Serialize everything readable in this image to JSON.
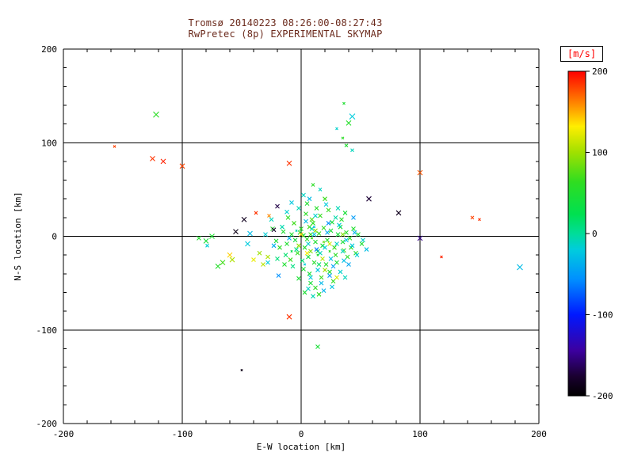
{
  "title": {
    "line1": "Tromsø 20140223 08:26:00-08:27:43",
    "line2": "RwPretec (8p) EXPERIMENTAL SKYMAP"
  },
  "axes": {
    "xlabel": "E-W location [km]",
    "ylabel": "N-S location [km]",
    "xlim": [
      -200,
      200
    ],
    "ylim": [
      -200,
      200
    ],
    "xticks": [
      -200,
      -100,
      0,
      100,
      200
    ],
    "yticks": [
      -200,
      -100,
      0,
      100,
      200
    ],
    "minor_tick_step": 20,
    "grid": true
  },
  "colorbar": {
    "label": "[m/s]",
    "min": -200,
    "max": 200,
    "ticks": [
      200,
      100,
      0,
      -100,
      -200
    ],
    "stops": [
      [
        0.0,
        "#000000"
      ],
      [
        0.06,
        "#1a0030"
      ],
      [
        0.14,
        "#3c00a0"
      ],
      [
        0.25,
        "#0018ff"
      ],
      [
        0.36,
        "#0090ff"
      ],
      [
        0.45,
        "#00ccdd"
      ],
      [
        0.5,
        "#00dd99"
      ],
      [
        0.56,
        "#00e050"
      ],
      [
        0.66,
        "#30dd20"
      ],
      [
        0.75,
        "#a0e000"
      ],
      [
        0.83,
        "#ffee00"
      ],
      [
        0.9,
        "#ff8800"
      ],
      [
        1.0,
        "#ff0000"
      ]
    ]
  },
  "colors": {
    "background": "#ffffff",
    "axis": "#000000",
    "title_text": "#6b2a1c",
    "colorbar_label_text": "#ff0000"
  },
  "chart_data": {
    "type": "scatter",
    "marker": "x",
    "title": "Tromsø 20140223 08:26:00-08:27:43 — RwPretec (8p) EXPERIMENTAL SKYMAP",
    "xlabel": "E-W location [km]",
    "ylabel": "N-S location [km]",
    "xlim": [
      -200,
      200
    ],
    "ylim": [
      -200,
      200
    ],
    "color_value": "velocity [m/s]",
    "color_range": [
      -200,
      200
    ],
    "points_format": [
      "x_km",
      "y_km",
      "velocity_mps",
      "marker_halfsize_px_optional"
    ],
    "points": [
      [
        2,
        1,
        45
      ],
      [
        5,
        -3,
        55
      ],
      [
        -1,
        4,
        38
      ],
      [
        8,
        2,
        62
      ],
      [
        12,
        -6,
        48
      ],
      [
        3,
        -12,
        52
      ],
      [
        -5,
        -4,
        41
      ],
      [
        0,
        8,
        58
      ],
      [
        15,
        3,
        66
      ],
      [
        18,
        -10,
        44
      ],
      [
        7,
        10,
        72
      ],
      [
        -8,
        2,
        49
      ],
      [
        10,
        14,
        61
      ],
      [
        22,
        -4,
        53
      ],
      [
        25,
        6,
        47
      ],
      [
        -3,
        -18,
        64
      ],
      [
        6,
        -22,
        39
      ],
      [
        14,
        -16,
        57
      ],
      [
        28,
        -12,
        68
      ],
      [
        31,
        2,
        43
      ],
      [
        9,
        18,
        76
      ],
      [
        -12,
        -8,
        51
      ],
      [
        4,
        24,
        59
      ],
      [
        19,
        9,
        63
      ],
      [
        35,
        -6,
        46
      ],
      [
        11,
        -28,
        55
      ],
      [
        -6,
        14,
        69
      ],
      [
        2,
        -35,
        48
      ],
      [
        26,
        15,
        42
      ],
      [
        38,
        4,
        58
      ],
      [
        16,
        22,
        65
      ],
      [
        -15,
        5,
        50
      ],
      [
        29,
        -20,
        61
      ],
      [
        7,
        -40,
        44
      ],
      [
        21,
        -30,
        53
      ],
      [
        -9,
        -25,
        67
      ],
      [
        33,
        10,
        49
      ],
      [
        13,
        30,
        56
      ],
      [
        41,
        -2,
        62
      ],
      [
        -2,
        -45,
        47
      ],
      [
        24,
        -38,
        54
      ],
      [
        36,
        -15,
        70
      ],
      [
        8,
        -50,
        43
      ],
      [
        -18,
        -12,
        59
      ],
      [
        44,
        8,
        51
      ],
      [
        17,
        -44,
        66
      ],
      [
        30,
        -28,
        45
      ],
      [
        -11,
        20,
        62
      ],
      [
        39,
        -22,
        57
      ],
      [
        5,
        35,
        49
      ],
      [
        27,
        -48,
        64
      ],
      [
        48,
        2,
        52
      ],
      [
        -21,
        -5,
        46
      ],
      [
        12,
        -55,
        60
      ],
      [
        34,
        18,
        55
      ],
      [
        20,
        40,
        68
      ],
      [
        -14,
        -30,
        50
      ],
      [
        42,
        -12,
        63
      ],
      [
        3,
        -60,
        47
      ],
      [
        46,
        -18,
        58
      ],
      [
        -24,
        8,
        53
      ],
      [
        37,
        25,
        44
      ],
      [
        15,
        -62,
        61
      ],
      [
        51,
        -8,
        49
      ],
      [
        23,
        28,
        66
      ],
      [
        6,
        -8,
        -15
      ],
      [
        -4,
        -14,
        5
      ],
      [
        11,
        2,
        -25
      ],
      [
        16,
        -18,
        -8
      ],
      [
        1,
        -26,
        12
      ],
      [
        -10,
        -2,
        -35
      ],
      [
        20,
        -12,
        -18
      ],
      [
        9,
        8,
        -5
      ],
      [
        25,
        -24,
        -28
      ],
      [
        -7,
        -32,
        8
      ],
      [
        14,
        -36,
        -22
      ],
      [
        30,
        -8,
        -12
      ],
      [
        4,
        16,
        -30
      ],
      [
        -13,
        -20,
        15
      ],
      [
        22,
        4,
        -40
      ],
      [
        35,
        -16,
        -10
      ],
      [
        8,
        -44,
        -20
      ],
      [
        -16,
        10,
        -6
      ],
      [
        27,
        -32,
        -45
      ],
      [
        12,
        22,
        -15
      ],
      [
        38,
        -4,
        -25
      ],
      [
        -20,
        -24,
        10
      ],
      [
        17,
        -50,
        -32
      ],
      [
        32,
        12,
        -18
      ],
      [
        -2,
        30,
        -8
      ],
      [
        24,
        -42,
        -50
      ],
      [
        43,
        -10,
        -22
      ],
      [
        6,
        -56,
        -12
      ],
      [
        -23,
        -10,
        -38
      ],
      [
        29,
        20,
        -5
      ],
      [
        15,
        -30,
        18
      ],
      [
        36,
        -26,
        -28
      ],
      [
        -12,
        26,
        -16
      ],
      [
        45,
        4,
        -35
      ],
      [
        10,
        -64,
        -8
      ],
      [
        21,
        34,
        -20
      ],
      [
        -19,
        -42,
        -55
      ],
      [
        33,
        -38,
        -14
      ],
      [
        7,
        40,
        -30
      ],
      [
        40,
        -30,
        -42
      ],
      [
        -25,
        18,
        -10
      ],
      [
        26,
        -54,
        -25
      ],
      [
        47,
        -20,
        -18
      ],
      [
        13,
        -14,
        -60
      ],
      [
        2,
        44,
        -12
      ],
      [
        -28,
        -28,
        -20
      ],
      [
        31,
        30,
        -8
      ],
      [
        19,
        -58,
        -35
      ],
      [
        52,
        -4,
        -15
      ],
      [
        44,
        20,
        -48
      ],
      [
        -8,
        36,
        -22
      ],
      [
        37,
        -44,
        -10
      ],
      [
        23,
        14,
        -55
      ],
      [
        55,
        -14,
        -28
      ],
      [
        -30,
        2,
        -18
      ],
      [
        -2,
        -10,
        95
      ],
      [
        18,
        -24,
        110
      ],
      [
        -28,
        -22,
        105
      ],
      [
        8,
        -16,
        88
      ],
      [
        30,
        -44,
        120
      ],
      [
        -35,
        -18,
        98
      ],
      [
        12,
        6,
        92
      ],
      [
        24,
        -8,
        115
      ],
      [
        -40,
        -25,
        125
      ],
      [
        35,
        2,
        90
      ],
      [
        -32,
        -30,
        108
      ],
      [
        20,
        -36,
        100
      ],
      [
        0,
        2,
        140
      ],
      [
        5,
        -18,
        130
      ],
      [
        9,
        -2,
        70,
        1.2
      ],
      [
        -4,
        6,
        -10,
        1.2
      ],
      [
        14,
        -20,
        50,
        1.2
      ],
      [
        3,
        -30,
        -20,
        1.2
      ],
      [
        19,
        -6,
        80,
        1.2
      ],
      [
        -8,
        -16,
        30,
        1.2
      ],
      [
        11,
        10,
        -25,
        1.2
      ],
      [
        24,
        -16,
        60,
        1.2
      ],
      [
        10,
        55,
        60,
        2
      ],
      [
        16,
        50,
        -12,
        2
      ],
      [
        -60,
        -20,
        140,
        3
      ],
      [
        -66,
        -28,
        70,
        3
      ],
      [
        -70,
        -32,
        55,
        3
      ],
      [
        -58,
        -25,
        105,
        3
      ],
      [
        -75,
        0,
        50,
        3
      ],
      [
        -80,
        -5,
        45,
        3
      ],
      [
        -55,
        5,
        -190,
        3
      ],
      [
        -48,
        18,
        -185,
        3
      ],
      [
        -38,
        25,
        185,
        2
      ],
      [
        -45,
        -8,
        -20,
        3
      ],
      [
        -43,
        3,
        -30,
        3
      ],
      [
        -23,
        7,
        -180,
        2.5
      ],
      [
        -20,
        32,
        -170,
        2.5
      ],
      [
        -27,
        22,
        160,
        2
      ],
      [
        -86,
        -2,
        52,
        2.5
      ],
      [
        -79,
        -10,
        -18,
        2
      ],
      [
        -122,
        130,
        60,
        3.5
      ],
      [
        43,
        128,
        -20,
        3.5
      ],
      [
        40,
        121,
        55,
        3
      ],
      [
        38,
        97,
        50,
        2
      ],
      [
        43,
        92,
        -10,
        2
      ],
      [
        30,
        115,
        -15,
        1.5
      ],
      [
        35,
        105,
        60,
        1.5
      ],
      [
        36,
        142,
        50,
        1.5
      ],
      [
        -157,
        96,
        180,
        1.5
      ],
      [
        -125,
        83,
        185,
        3
      ],
      [
        -116,
        80,
        190,
        3
      ],
      [
        -100,
        75,
        180,
        3
      ],
      [
        -10,
        78,
        185,
        3
      ],
      [
        100,
        68,
        175,
        3
      ],
      [
        144,
        20,
        180,
        2
      ],
      [
        150,
        18,
        185,
        1.5
      ],
      [
        118,
        -22,
        190,
        1.5
      ],
      [
        -10,
        -86,
        185,
        3
      ],
      [
        57,
        40,
        -175,
        3
      ],
      [
        82,
        25,
        -185,
        3
      ],
      [
        100,
        -2,
        -150,
        3
      ],
      [
        -50,
        -143,
        -190,
        1.2
      ],
      [
        184,
        -33,
        -30,
        3.5
      ],
      [
        14,
        -118,
        45,
        2.5
      ]
    ]
  }
}
